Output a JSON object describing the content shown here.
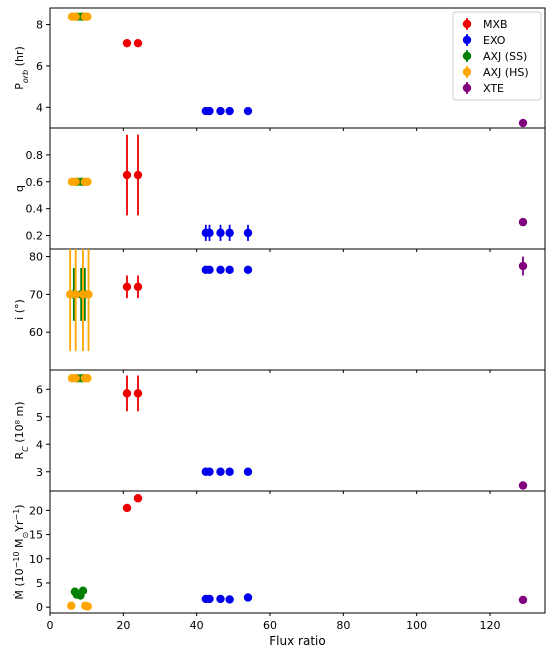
{
  "chart_data": {
    "type": "scatter",
    "xlabel": "Flux ratio",
    "xlim": [
      0,
      135
    ],
    "xticks": [
      0,
      20,
      40,
      60,
      80,
      100,
      120
    ],
    "legend_position": "top-right",
    "series_styles": [
      {
        "name": "MXB",
        "color": "#ee0000"
      },
      {
        "name": "EXO",
        "color": "#0000ee"
      },
      {
        "name": "AXJ (SS)",
        "color": "#008000"
      },
      {
        "name": "AXJ (HS)",
        "color": "#ffa500"
      },
      {
        "name": "XTE",
        "color": "#800080"
      }
    ],
    "panels": [
      {
        "key": "porb",
        "ylabel_main": "P",
        "ylabel_sub": "orb",
        "ylabel_tail": " (hr)",
        "ylim": [
          3.0,
          8.8
        ],
        "yticks": [
          4,
          6,
          8
        ],
        "series": [
          {
            "name": "MXB",
            "points": [
              [
                21,
                7.1,
                0
              ],
              [
                24,
                7.1,
                0
              ]
            ]
          },
          {
            "name": "EXO",
            "points": [
              [
                42.5,
                3.82,
                0
              ],
              [
                43.5,
                3.82,
                0
              ],
              [
                46.5,
                3.82,
                0
              ],
              [
                49,
                3.82,
                0
              ],
              [
                54,
                3.82,
                0
              ]
            ]
          },
          {
            "name": "AXJ (SS)",
            "points": [
              [
                7.5,
                8.38,
                0
              ],
              [
                8.8,
                8.38,
                0
              ]
            ]
          },
          {
            "name": "AXJ (HS)",
            "points": [
              [
                6,
                8.38,
                0
              ],
              [
                7,
                8.38,
                0
              ],
              [
                9.5,
                8.38,
                0
              ],
              [
                10.2,
                8.38,
                0
              ]
            ]
          },
          {
            "name": "XTE",
            "points": [
              [
                129,
                3.24,
                0
              ]
            ]
          }
        ]
      },
      {
        "key": "q",
        "ylabel_main": "q",
        "ylabel_sub": "",
        "ylabel_tail": "",
        "ylim": [
          0.1,
          1.0
        ],
        "yticks": [
          0.2,
          0.4,
          0.6,
          0.8
        ],
        "series": [
          {
            "name": "MXB",
            "points": [
              [
                21,
                0.65,
                0.3
              ],
              [
                24,
                0.65,
                0.3
              ]
            ]
          },
          {
            "name": "EXO",
            "points": [
              [
                42.5,
                0.22,
                0.06
              ],
              [
                43.5,
                0.22,
                0.06
              ],
              [
                46.5,
                0.22,
                0.06
              ],
              [
                49,
                0.22,
                0.06
              ],
              [
                54,
                0.22,
                0.06
              ]
            ]
          },
          {
            "name": "AXJ (SS)",
            "points": [
              [
                7.5,
                0.6,
                0
              ],
              [
                8.8,
                0.6,
                0
              ]
            ]
          },
          {
            "name": "AXJ (HS)",
            "points": [
              [
                6,
                0.6,
                0
              ],
              [
                7,
                0.6,
                0
              ],
              [
                9.5,
                0.6,
                0
              ],
              [
                10.2,
                0.6,
                0
              ]
            ]
          },
          {
            "name": "XTE",
            "points": [
              [
                129,
                0.3,
                0
              ]
            ]
          }
        ]
      },
      {
        "key": "incl",
        "ylabel_main": "i (°)",
        "ylabel_sub": "",
        "ylabel_tail": "",
        "ylim": [
          50,
          82
        ],
        "yticks": [
          60,
          70,
          80
        ],
        "series": [
          {
            "name": "MXB",
            "points": [
              [
                21,
                72,
                3
              ],
              [
                24,
                72,
                3
              ]
            ]
          },
          {
            "name": "EXO",
            "points": [
              [
                42.5,
                76.5,
                1
              ],
              [
                43.5,
                76.5,
                1
              ],
              [
                46.5,
                76.5,
                1
              ],
              [
                49,
                76.5,
                1
              ],
              [
                54,
                76.5,
                1
              ]
            ]
          },
          {
            "name": "AXJ (SS)",
            "points": [
              [
                6.5,
                70,
                7
              ],
              [
                8.5,
                70,
                7
              ],
              [
                9.5,
                70,
                7
              ]
            ]
          },
          {
            "name": "AXJ (HS)",
            "points": [
              [
                5.5,
                70,
                15
              ],
              [
                7,
                70,
                15
              ],
              [
                9,
                70,
                15
              ],
              [
                10.5,
                70,
                15
              ]
            ]
          },
          {
            "name": "XTE",
            "points": [
              [
                129,
                77.5,
                2.5
              ]
            ]
          }
        ]
      },
      {
        "key": "rc",
        "ylabel_main": "R",
        "ylabel_sub": "C",
        "ylabel_tail": " (10⁸ m)",
        "ylim": [
          2.3,
          6.7
        ],
        "yticks": [
          3,
          4,
          5,
          6
        ],
        "series": [
          {
            "name": "MXB",
            "points": [
              [
                21,
                5.85,
                0.65
              ],
              [
                24,
                5.85,
                0.65
              ]
            ]
          },
          {
            "name": "EXO",
            "points": [
              [
                42.5,
                3.0,
                0
              ],
              [
                43.5,
                3.0,
                0
              ],
              [
                46.5,
                3.0,
                0
              ],
              [
                49,
                3.0,
                0
              ],
              [
                54,
                3.0,
                0
              ]
            ]
          },
          {
            "name": "AXJ (SS)",
            "points": [
              [
                7.5,
                6.4,
                0
              ],
              [
                8.8,
                6.4,
                0
              ]
            ]
          },
          {
            "name": "AXJ (HS)",
            "points": [
              [
                6,
                6.4,
                0
              ],
              [
                7,
                6.4,
                0
              ],
              [
                9.5,
                6.4,
                0
              ],
              [
                10.2,
                6.4,
                0
              ]
            ]
          },
          {
            "name": "XTE",
            "points": [
              [
                129,
                2.5,
                0
              ]
            ]
          }
        ]
      },
      {
        "key": "mdot",
        "ylabel_main": "Ṁ (10",
        "ylabel_sup": "−10",
        "ylabel_tail": " M",
        "ylabel_sub2": "⊙",
        "ylabel_tail2": "Yr",
        "ylabel_sup2": "−1",
        "ylabel_end": ")",
        "ylim": [
          -1.2,
          24
        ],
        "yticks": [
          0,
          5,
          10,
          15,
          20
        ],
        "series": [
          {
            "name": "MXB",
            "points": [
              [
                21,
                20.5,
                0
              ],
              [
                24,
                22.5,
                0
              ]
            ]
          },
          {
            "name": "EXO",
            "points": [
              [
                42.5,
                1.7,
                0.3
              ],
              [
                43.5,
                1.7,
                0.3
              ],
              [
                46.5,
                1.7,
                0.3
              ],
              [
                49,
                1.6,
                0.3
              ],
              [
                54,
                2.0,
                0.4
              ]
            ]
          },
          {
            "name": "AXJ (SS)",
            "points": [
              [
                6.8,
                3.2,
                0
              ],
              [
                7.3,
                2.6,
                0
              ],
              [
                8.3,
                2.4,
                0
              ],
              [
                9.0,
                3.4,
                0
              ]
            ]
          },
          {
            "name": "AXJ (HS)",
            "points": [
              [
                5.8,
                0.3,
                0
              ],
              [
                9.6,
                0.3,
                0
              ],
              [
                10.3,
                0.15,
                0
              ]
            ]
          },
          {
            "name": "XTE",
            "points": [
              [
                129,
                1.5,
                0
              ]
            ]
          }
        ]
      }
    ]
  }
}
